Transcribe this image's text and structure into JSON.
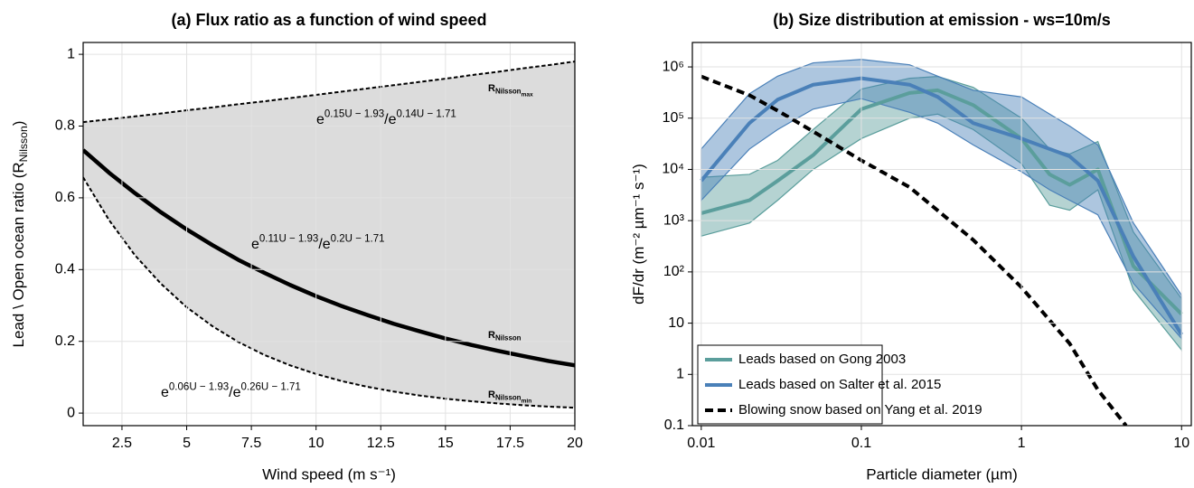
{
  "chart_data": [
    {
      "type": "line",
      "title": "(a)  Flux ratio as a function of wind speed",
      "xlabel": "Wind speed (m s⁻¹)",
      "ylabel": [
        "Lead \\ Open ocean ratio (R",
        "Nilsson",
        ")"
      ],
      "xlim": [
        1,
        20
      ],
      "ylim": [
        -0.035,
        1.033
      ],
      "xticks": [
        2.5,
        5,
        7.5,
        10,
        12.5,
        15,
        17.5,
        20
      ],
      "yticks": [
        0,
        0.2,
        0.4,
        0.6,
        0.8,
        1
      ],
      "grid": true,
      "shade": {
        "between": [
          0,
          2
        ],
        "color": "#dcdcdc"
      },
      "x": [
        1,
        2,
        3,
        4,
        5,
        6,
        7,
        8,
        9,
        10,
        11,
        12,
        13,
        14,
        15,
        16,
        17,
        18,
        19,
        20
      ],
      "series": [
        {
          "label": [
            "R",
            "Nilsson",
            "max"
          ],
          "formula": [
            "e",
            "0.15U − 1.93",
            "/e",
            "0.14U − 1.71"
          ],
          "color": "#000000",
          "dashed": true,
          "linewidth": 2,
          "values": [
            0.811,
            0.819,
            0.827,
            0.835,
            0.844,
            0.852,
            0.861,
            0.869,
            0.878,
            0.887,
            0.896,
            0.905,
            0.914,
            0.923,
            0.932,
            0.942,
            0.951,
            0.961,
            0.97,
            0.98
          ]
        },
        {
          "label": [
            "R",
            "Nilsson"
          ],
          "formula": [
            "e",
            "0.11U − 1.93",
            "/e",
            "0.2U − 1.71"
          ],
          "color": "#000000",
          "dashed": false,
          "linewidth": 4.5,
          "values": [
            0.733,
            0.67,
            0.613,
            0.56,
            0.512,
            0.468,
            0.427,
            0.391,
            0.357,
            0.326,
            0.298,
            0.273,
            0.249,
            0.228,
            0.208,
            0.19,
            0.174,
            0.159,
            0.145,
            0.133
          ]
        },
        {
          "label": [
            "R",
            "Nilsson",
            "min"
          ],
          "formula": [
            "e",
            "0.06U − 1.93",
            "/e",
            "0.26U − 1.71"
          ],
          "color": "#000000",
          "dashed": true,
          "linewidth": 2,
          "values": [
            0.657,
            0.538,
            0.44,
            0.361,
            0.295,
            0.242,
            0.198,
            0.162,
            0.133,
            0.109,
            0.089,
            0.073,
            0.06,
            0.049,
            0.04,
            0.033,
            0.027,
            0.022,
            0.018,
            0.015
          ]
        }
      ]
    },
    {
      "type": "line",
      "title": "(b) Size distribution at emission - ws=10m/s",
      "xlabel": "Particle diameter (µm)",
      "ylabel": [
        "dF/dr (m⁻² µm⁻¹ s⁻¹)"
      ],
      "xlog": true,
      "ylog": true,
      "xlim": [
        0.0088,
        11.5
      ],
      "ylim": [
        0.1,
        3000000
      ],
      "xticks": [
        0.01,
        0.1,
        1,
        10
      ],
      "yticks": [
        0.1,
        1,
        10,
        {
          "value": 100,
          "label": "10²"
        },
        {
          "value": 1000,
          "label": "10³"
        },
        {
          "value": 10000,
          "label": "10⁴"
        },
        {
          "value": 100000,
          "label": "10⁵"
        },
        {
          "value": 1000000,
          "label": "10⁶"
        }
      ],
      "grid": true,
      "legend": "lower left",
      "series": [
        {
          "name": "Leads based on Gong 2003",
          "color": "#5b9e9c",
          "dashed": false,
          "linewidth": 4,
          "x": [
            0.01,
            0.02,
            0.03,
            0.05,
            0.1,
            0.2,
            0.3,
            0.5,
            1,
            1.5,
            2,
            3,
            5,
            10
          ],
          "values": [
            1400,
            2500,
            6000,
            19000,
            150000,
            310000,
            350000,
            180000,
            40000,
            8000,
            5000,
            10000,
            130,
            15
          ],
          "lower": [
            500,
            900,
            2500,
            10000,
            40000,
            100000,
            120000,
            60000,
            13000,
            2000,
            1600,
            4000,
            45,
            3
          ],
          "upper": [
            7000,
            8000,
            15000,
            60000,
            370000,
            600000,
            650000,
            400000,
            100000,
            25000,
            20000,
            35000,
            600,
            30
          ]
        },
        {
          "name": "Leads based on Salter et al. 2015",
          "color": "#4a80b8",
          "dashed": false,
          "linewidth": 4,
          "x": [
            0.01,
            0.02,
            0.03,
            0.05,
            0.1,
            0.2,
            0.3,
            0.5,
            1,
            1.5,
            2,
            3,
            5,
            10
          ],
          "values": [
            6000,
            80000,
            230000,
            450000,
            600000,
            450000,
            260000,
            80000,
            40000,
            25000,
            18000,
            6000,
            200,
            6
          ],
          "lower": [
            2500,
            25000,
            60000,
            150000,
            240000,
            130000,
            80000,
            30000,
            9000,
            4000,
            2500,
            1300,
            60,
            5
          ],
          "upper": [
            25000,
            300000,
            660000,
            1200000,
            1400000,
            1100000,
            660000,
            350000,
            260000,
            120000,
            70000,
            30000,
            900,
            35
          ]
        },
        {
          "name": "Blowing snow based on Yang et al. 2019",
          "color": "#000000",
          "dashed": true,
          "linewidth": 4,
          "x": [
            0.01,
            0.02,
            0.03,
            0.05,
            0.1,
            0.2,
            0.5,
            1,
            2,
            3,
            4.5
          ],
          "values": [
            650000,
            280000,
            140000,
            55000,
            15000,
            4500,
            420,
            50,
            4,
            0.5,
            0.1
          ]
        }
      ]
    }
  ]
}
